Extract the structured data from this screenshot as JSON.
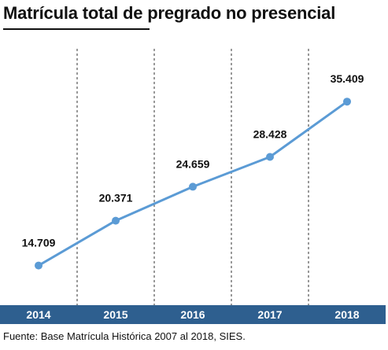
{
  "title": "Matrícula total de pregrado no presencial",
  "source": "Fuente: Base Matrícula Histórica 2007 al 2018, SIES.",
  "colors": {
    "line": "#5b9bd5",
    "axis_band": "#2e5f8f",
    "axis_text": "#ffffff",
    "divider": "#333333"
  },
  "chart_data": {
    "type": "line",
    "categories": [
      "2014",
      "2015",
      "2016",
      "2017",
      "2018"
    ],
    "values": [
      14709,
      20371,
      24659,
      28428,
      35409
    ],
    "labels": [
      "14.709",
      "20.371",
      "24.659",
      "28.428",
      "35.409"
    ],
    "title": "Matrícula total de pregrado no presencial",
    "grid": false,
    "legend": "none"
  }
}
